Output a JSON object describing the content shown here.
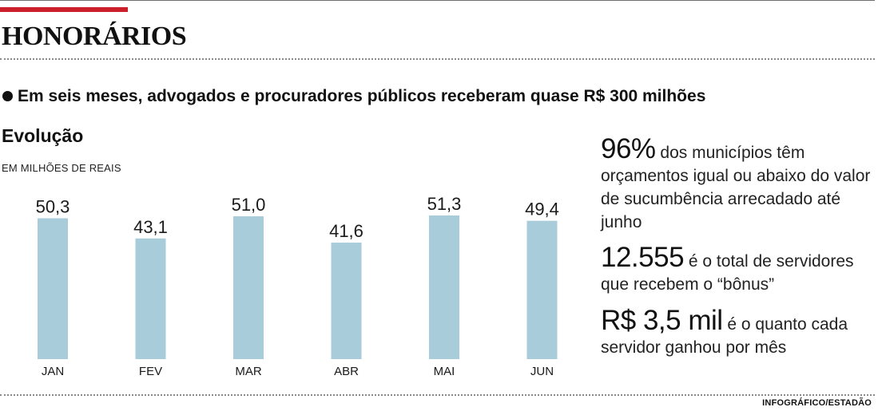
{
  "colors": {
    "accent": "#cc1f2c",
    "bar": "#a8ccd9"
  },
  "header": {
    "title": "HONORÁRIOS"
  },
  "subtitle": "Em seis meses, advogados e procuradores públicos receberam quase R$ 300 milhões",
  "chart_data": {
    "type": "bar",
    "title": "Evolução",
    "unit_label": "EM MILHÕES DE REAIS",
    "categories": [
      "JAN",
      "FEV",
      "MAR",
      "ABR",
      "MAI",
      "JUN"
    ],
    "values": [
      50.3,
      43.1,
      51.0,
      41.6,
      51.3,
      49.4
    ],
    "value_labels": [
      "50,3",
      "43,1",
      "51,0",
      "41,6",
      "51,3",
      "49,4"
    ],
    "xlabel": "",
    "ylabel": "",
    "ylim": [
      0,
      51.3
    ],
    "grid": false
  },
  "facts": [
    {
      "big": "96%",
      "text": " dos municípios têm orçamentos igual ou abaixo do valor de sucumbência arrecadado até junho"
    },
    {
      "big": "12.555",
      "text": " é o total de servidores que recebem o “bônus”"
    },
    {
      "big": "R$ 3,5 mil",
      "text": " é o quanto cada servidor ganhou por mês"
    }
  ],
  "credit": "INFOGRÁFICO/ESTADÃO"
}
